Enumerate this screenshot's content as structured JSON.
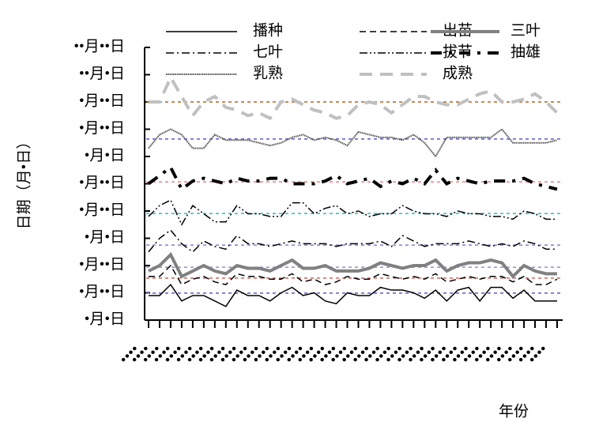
{
  "chart_data": {
    "type": "line",
    "y_label": "日期（月•日）",
    "x_label": "年份",
    "categories": [
      "••••",
      "••••",
      "••••",
      "••••",
      "••••",
      "••••",
      "••••",
      "••••",
      "••••",
      "••••",
      "••••",
      "••••",
      "••••",
      "••••",
      "••••",
      "••••",
      "••••",
      "••••",
      "••••",
      "••••",
      "••••",
      "••••",
      "••••",
      "••••",
      "••••",
      "••••",
      "••••",
      "••••",
      "••••",
      "••••",
      "••••",
      "••••",
      "••••",
      "••••",
      "••••",
      "••••",
      "••••",
      "••••"
    ],
    "ylim": [
      0,
      10
    ],
    "yticks": [
      {
        "value": 0,
        "label": "•月•日"
      },
      {
        "value": 1,
        "label": "•月••日"
      },
      {
        "value": 2,
        "label": "•月••日"
      },
      {
        "value": 3,
        "label": "•月•日"
      },
      {
        "value": 4,
        "label": "•月••日"
      },
      {
        "value": 5,
        "label": "•月••日"
      },
      {
        "value": 6,
        "label": "•月•日"
      },
      {
        "value": 7,
        "label": "•月••日"
      },
      {
        "value": 8,
        "label": "•月••日"
      },
      {
        "value": 9,
        "label": "••月•日"
      },
      {
        "value": 10,
        "label": "••月••日"
      }
    ],
    "reference_lines": [
      {
        "value": 8.0,
        "color": "#b5651d"
      },
      {
        "value": 6.64,
        "color": "#5a5acc"
      },
      {
        "value": 5.07,
        "color": "#f08080"
      },
      {
        "value": 3.91,
        "color": "#20c0c0"
      },
      {
        "value": 2.75,
        "color": "#8a7acc"
      },
      {
        "value": 1.94,
        "color": "#9a8acc"
      },
      {
        "value": 1.54,
        "color": "#d06060"
      },
      {
        "value": 0.99,
        "color": "#5a5acc"
      }
    ],
    "series": [
      {
        "name": "播种",
        "color": "#000000",
        "width": 1.5,
        "dash": "none",
        "values": [
          0.9,
          0.9,
          1.3,
          0.7,
          0.9,
          0.9,
          0.7,
          0.5,
          1.1,
          0.9,
          0.9,
          0.7,
          1.0,
          1.2,
          0.9,
          1.0,
          0.7,
          0.6,
          1.0,
          0.9,
          0.9,
          1.2,
          1.1,
          1.1,
          1.0,
          0.8,
          1.1,
          0.7,
          1.1,
          1.2,
          0.7,
          1.2,
          1.2,
          0.8,
          1.1,
          0.7,
          0.7,
          0.7
        ]
      },
      {
        "name": "出苗",
        "color": "#000000",
        "width": 1.5,
        "dash": "8,5",
        "values": [
          1.6,
          1.6,
          2.0,
          1.3,
          1.5,
          1.6,
          1.4,
          1.3,
          1.7,
          1.6,
          1.6,
          1.5,
          1.5,
          1.7,
          1.4,
          1.5,
          1.3,
          1.4,
          1.6,
          1.5,
          1.5,
          1.7,
          1.6,
          1.5,
          1.6,
          1.5,
          1.7,
          1.4,
          1.5,
          1.6,
          1.5,
          1.6,
          1.6,
          1.4,
          1.6,
          1.3,
          1.3,
          1.5
        ]
      },
      {
        "name": "三叶",
        "color": "#808080",
        "width": 4,
        "dash": "none",
        "values": [
          1.8,
          2.0,
          2.4,
          1.6,
          1.8,
          2.0,
          1.8,
          1.7,
          2.0,
          1.9,
          1.9,
          1.8,
          2.0,
          2.2,
          1.9,
          1.9,
          2.0,
          1.8,
          1.8,
          1.8,
          1.9,
          2.1,
          2.0,
          1.9,
          2.0,
          2.0,
          2.2,
          1.8,
          2.0,
          2.1,
          2.1,
          2.2,
          2.1,
          1.6,
          2.0,
          1.8,
          1.7,
          1.7
        ]
      },
      {
        "name": "七叶",
        "color": "#000000",
        "width": 1.5,
        "dash": "10,4,2,4",
        "values": [
          2.5,
          3.0,
          3.3,
          2.8,
          2.5,
          2.9,
          2.7,
          2.6,
          3.1,
          2.8,
          2.8,
          2.7,
          2.8,
          2.9,
          2.8,
          2.8,
          2.8,
          2.7,
          2.8,
          2.8,
          2.8,
          2.9,
          2.7,
          3.1,
          2.9,
          2.7,
          2.8,
          2.8,
          2.8,
          2.9,
          2.8,
          2.7,
          2.8,
          2.7,
          2.9,
          2.8,
          2.6,
          2.6
        ]
      },
      {
        "name": "拔节",
        "color": "#000000",
        "width": 1.5,
        "dash": "10,3,2,3,2,3",
        "values": [
          3.8,
          4.2,
          4.4,
          3.5,
          4.2,
          3.9,
          3.6,
          3.6,
          4.2,
          3.9,
          3.9,
          3.8,
          3.8,
          4.3,
          4.3,
          3.9,
          4.1,
          4.2,
          3.9,
          4.0,
          3.8,
          3.9,
          3.9,
          4.2,
          4.0,
          3.9,
          3.9,
          3.8,
          4.0,
          3.9,
          3.9,
          3.8,
          3.8,
          3.7,
          4.0,
          3.9,
          3.7,
          3.7
        ]
      },
      {
        "name": "抽雄",
        "color": "#000000",
        "width": 4,
        "dash": "14,9,4,9",
        "values": [
          5.0,
          5.3,
          5.6,
          4.8,
          5.1,
          5.2,
          5.1,
          5.0,
          5.2,
          5.1,
          5.1,
          5.2,
          5.2,
          5.0,
          5.0,
          5.0,
          5.1,
          5.3,
          5.0,
          5.1,
          5.2,
          4.9,
          5.1,
          5.0,
          5.2,
          5.0,
          5.5,
          5.0,
          5.2,
          5.1,
          5.0,
          5.1,
          5.1,
          5.1,
          5.2,
          5.0,
          4.9,
          4.8
        ]
      },
      {
        "name": "乳熟",
        "color": "#555555",
        "width": 2,
        "dash": "1.5,0.8",
        "values": [
          6.3,
          6.8,
          7.0,
          6.8,
          6.3,
          6.3,
          6.8,
          6.6,
          6.6,
          6.6,
          6.5,
          6.4,
          6.5,
          6.7,
          6.8,
          6.6,
          6.7,
          6.6,
          6.4,
          6.9,
          6.8,
          6.7,
          6.7,
          6.6,
          6.8,
          6.5,
          6.0,
          6.7,
          6.7,
          6.7,
          6.7,
          6.7,
          7.0,
          6.5,
          6.5,
          6.5,
          6.5,
          6.6
        ]
      },
      {
        "name": "成熟",
        "color": "#c0c0c0",
        "width": 4,
        "dash": "16,10",
        "values": [
          8.0,
          8.0,
          8.9,
          8.2,
          7.5,
          8.0,
          8.2,
          7.8,
          7.7,
          7.5,
          7.6,
          7.4,
          8.0,
          8.1,
          7.9,
          7.7,
          7.6,
          7.4,
          7.5,
          7.9,
          8.0,
          7.9,
          7.6,
          7.9,
          8.2,
          8.2,
          8.0,
          7.9,
          7.9,
          8.1,
          8.3,
          8.4,
          8.0,
          8.0,
          8.1,
          8.3,
          8.0,
          7.6
        ]
      }
    ]
  }
}
